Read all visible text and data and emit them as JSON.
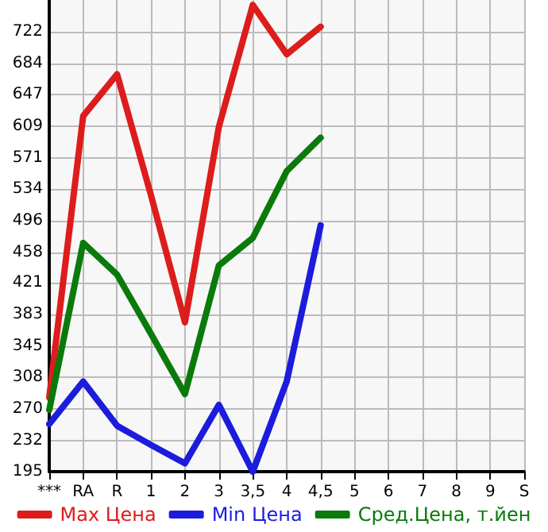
{
  "chart_data": {
    "type": "line",
    "categories": [
      "***",
      "RA",
      "R",
      "1",
      "2",
      "3",
      "3,5",
      "4",
      "4,5",
      "5",
      "6",
      "7",
      "8",
      "9",
      "S"
    ],
    "series": [
      {
        "name": "Max Цена",
        "color": "#dd1c1c",
        "values": [
          284,
          621,
          671,
          526,
          374,
          608,
          754,
          695,
          728,
          null,
          null,
          null,
          null,
          null,
          null
        ]
      },
      {
        "name": "Min Цена",
        "color": "#1c1cdd",
        "values": [
          252,
          303,
          250,
          227,
          205,
          275,
          195,
          303,
          490,
          null,
          null,
          null,
          null,
          null,
          null
        ]
      },
      {
        "name": "Сред.Цена, т.йен",
        "color": "#0a7a0a",
        "values": [
          269,
          469,
          431,
          360,
          288,
          442,
          475,
          555,
          595,
          null,
          null,
          null,
          null,
          null,
          null
        ]
      }
    ],
    "ylim": [
      195,
      760
    ],
    "yticks": [
      195,
      232,
      270,
      308,
      345,
      383,
      421,
      458,
      496,
      534,
      571,
      609,
      647,
      684,
      722
    ],
    "grid": true,
    "legend": "bottom",
    "marker": "none",
    "line_style": "solid"
  }
}
